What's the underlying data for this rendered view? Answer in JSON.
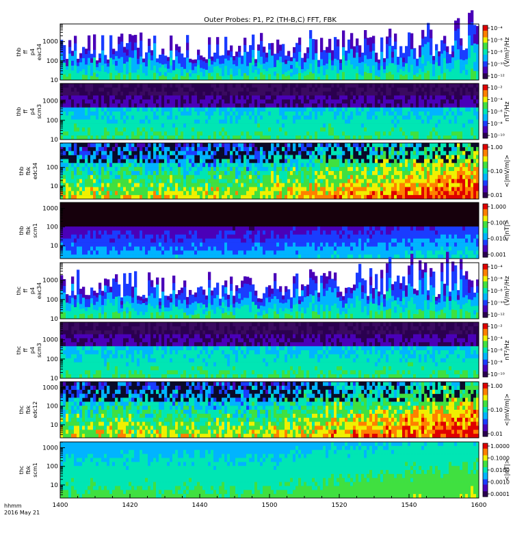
{
  "title": "Outer Probes: P1, P2 (TH-B,C) FFT, FBK",
  "footer": {
    "line1": "hhmm",
    "line2": "2016 May 21"
  },
  "chart_data": {
    "type": "heatmap",
    "x_axis": {
      "ticks": [
        "1400",
        "1420",
        "1440",
        "1500",
        "1520",
        "1540",
        "1600"
      ],
      "range": [
        "14:00",
        "16:00"
      ]
    },
    "panels": [
      {
        "id": "thb-ffp-eac34",
        "ylabel": [
          "thb",
          "ff",
          "p4",
          "eac34"
        ],
        "yticks": [
          "1000",
          "100",
          "10"
        ],
        "yscale": "log",
        "yrange": [
          10,
          8192
        ],
        "cbar_label": "(V/m)²/Hz",
        "cbar_ticks": [
          "10⁻⁴",
          "10⁻⁶",
          "10⁻⁸",
          "10⁻¹⁰",
          "10⁻¹²"
        ],
        "style": "e_fft"
      },
      {
        "id": "thb-ffp-scm3",
        "ylabel": [
          "thb",
          "ff",
          "p4",
          "scm3"
        ],
        "yticks": [
          "1000",
          "100",
          "10"
        ],
        "yscale": "log",
        "yrange": [
          10,
          8192
        ],
        "cbar_label": "nT²/Hz",
        "cbar_ticks": [
          "10⁻²",
          "10⁻⁴",
          "10⁻⁶",
          "10⁻⁸",
          "10⁻¹⁰"
        ],
        "style": "b_fft"
      },
      {
        "id": "thb-fbk-edc34",
        "ylabel": [
          "thb",
          "fbk",
          "edc34"
        ],
        "yticks": [
          "100",
          "10"
        ],
        "yscale": "log",
        "yrange": [
          2,
          2048
        ],
        "cbar_label": "<|mV/m|>",
        "cbar_ticks": [
          "1.00",
          "0.10",
          "0.01"
        ],
        "style": "e_fbk"
      },
      {
        "id": "thb-fbk-scm1",
        "ylabel": [
          "thb",
          "fbk",
          "scm1"
        ],
        "yticks": [
          "1000",
          "100",
          "10"
        ],
        "yscale": "log",
        "yrange": [
          2,
          2048
        ],
        "cbar_label": "<|nT|>",
        "cbar_ticks": [
          "1.000",
          "0.100",
          "0.010",
          "0.001"
        ],
        "style": "b_fbk_dark"
      },
      {
        "id": "thc-ffp-eac34",
        "ylabel": [
          "thc",
          "ff",
          "p4",
          "eac34"
        ],
        "yticks": [
          "1000",
          "100",
          "10"
        ],
        "yscale": "log",
        "yrange": [
          10,
          8192
        ],
        "cbar_label": "(V/m)²/Hz",
        "cbar_ticks": [
          "10⁻⁴",
          "10⁻⁶",
          "10⁻⁸",
          "10⁻¹⁰",
          "10⁻¹²"
        ],
        "style": "e_fft"
      },
      {
        "id": "thc-ffp-scm3",
        "ylabel": [
          "thc",
          "ff",
          "p4",
          "scm3"
        ],
        "yticks": [
          "1000",
          "100",
          "10"
        ],
        "yscale": "log",
        "yrange": [
          10,
          8192
        ],
        "cbar_label": "nT²/Hz",
        "cbar_ticks": [
          "10⁻²",
          "10⁻⁴",
          "10⁻⁶",
          "10⁻⁸",
          "10⁻¹⁰"
        ],
        "style": "b_fft"
      },
      {
        "id": "thc-fbk-edc12",
        "ylabel": [
          "thc",
          "fbk",
          "edc12"
        ],
        "yticks": [
          "1000",
          "100",
          "10"
        ],
        "yscale": "log",
        "yrange": [
          2,
          2048
        ],
        "cbar_label": "<|mV/m|>",
        "cbar_ticks": [
          "1.00",
          "0.10",
          "0.01"
        ],
        "style": "e_fbk"
      },
      {
        "id": "thc-fbk-scm1",
        "ylabel": [
          "thc",
          "fbk",
          "scm1"
        ],
        "yticks": [
          "1000",
          "100",
          "10"
        ],
        "yscale": "log",
        "yrange": [
          2,
          2048
        ],
        "cbar_label": "<|nT|>",
        "cbar_ticks": [
          "1.0000",
          "0.1000",
          "0.0100",
          "0.0010",
          "0.0001"
        ],
        "style": "b_fbk_light"
      }
    ],
    "colormap": [
      "#2b0050",
      "#4a00b8",
      "#1a3cff",
      "#00b4ff",
      "#00e6b4",
      "#40e040",
      "#f0f000",
      "#ff8000",
      "#e00000"
    ]
  }
}
